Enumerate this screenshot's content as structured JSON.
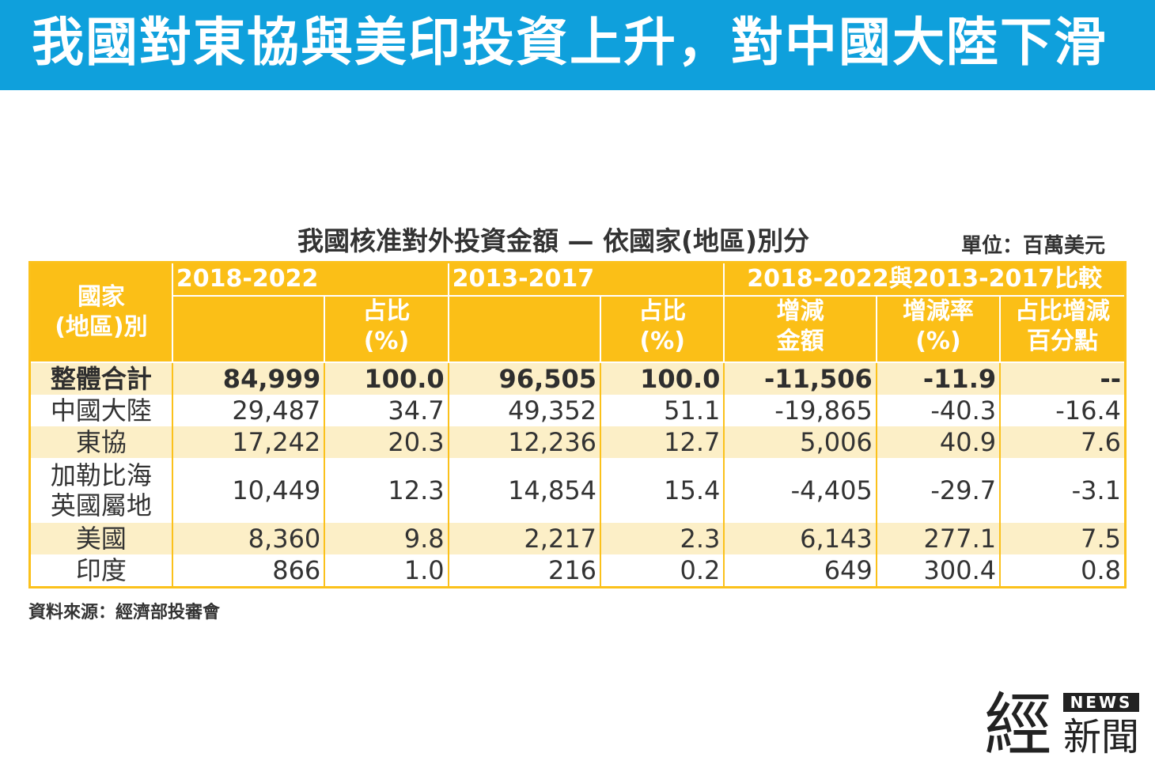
{
  "banner": {
    "title": "我國對東協與美印投資上升，對中國大陸下滑"
  },
  "table": {
    "title": "我國核准對外投資金額 — 依國家(地區)別分",
    "unit": "單位：百萬美元",
    "headers": {
      "country_line1": "國家",
      "country_line2": "(地區)別",
      "period1": "2018-2022",
      "period2": "2013-2017",
      "compare": "2018-2022與2013-2017比較",
      "share_line1": "占比",
      "share_line2": "(%)",
      "change_amount_line1": "增減",
      "change_amount_line2": "金額",
      "change_rate_line1": "增減率",
      "change_rate_line2": "(%)",
      "share_change_line1": "占比增減",
      "share_change_line2": "百分點"
    },
    "rows": [
      {
        "name": [
          "整體合計"
        ],
        "v1": "84,999",
        "s1": "100.0",
        "v2": "96,505",
        "s2": "100.0",
        "diff": "-11,506",
        "rate": "-11.9",
        "pp": "--"
      },
      {
        "name": [
          "中國大陸"
        ],
        "v1": "29,487",
        "s1": "34.7",
        "v2": "49,352",
        "s2": "51.1",
        "diff": "-19,865",
        "rate": "-40.3",
        "pp": "-16.4"
      },
      {
        "name": [
          "東協"
        ],
        "v1": "17,242",
        "s1": "20.3",
        "v2": "12,236",
        "s2": "12.7",
        "diff": "5,006",
        "rate": "40.9",
        "pp": "7.6"
      },
      {
        "name": [
          "加勒比海",
          "英國屬地"
        ],
        "v1": "10,449",
        "s1": "12.3",
        "v2": "14,854",
        "s2": "15.4",
        "diff": "-4,405",
        "rate": "-29.7",
        "pp": "-3.1"
      },
      {
        "name": [
          "美國"
        ],
        "v1": "8,360",
        "s1": "9.8",
        "v2": "2,217",
        "s2": "2.3",
        "diff": "6,143",
        "rate": "277.1",
        "pp": "7.5"
      },
      {
        "name": [
          "印度"
        ],
        "v1": "866",
        "s1": "1.0",
        "v2": "216",
        "s2": "0.2",
        "diff": "649",
        "rate": "300.4",
        "pp": "0.8"
      }
    ]
  },
  "source": "資料來源：經濟部投審會",
  "logo": {
    "big": "經",
    "badge": "NEWS",
    "small": "新聞"
  },
  "colors": {
    "banner": "#0fa0dc",
    "header": "#fbbf17",
    "row_shade": "#fcefc7"
  }
}
